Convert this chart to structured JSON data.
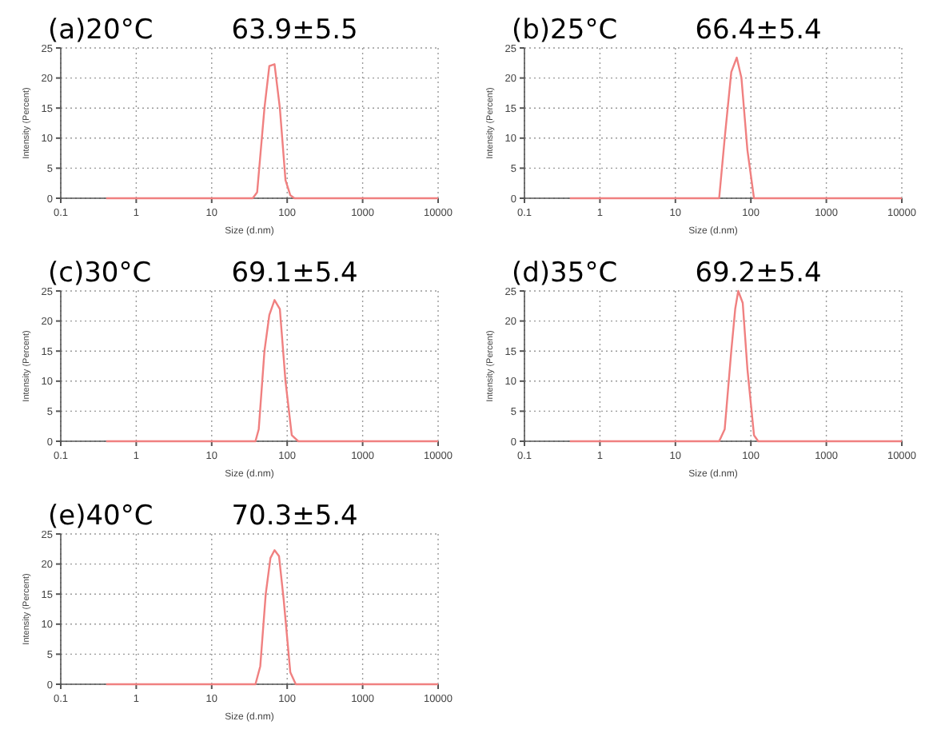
{
  "chart_data": [
    {
      "type": "line",
      "title": "(a)20°C",
      "subtitle": "63.9±5.5",
      "xlabel": "Size (d.nm)",
      "ylabel": "Intensity (Percent)",
      "log": "x",
      "grid": true,
      "xlim": [
        0.1,
        10000
      ],
      "ylim": [
        0,
        25
      ],
      "xticks": [
        0.1,
        1,
        10,
        100,
        1000,
        10000
      ],
      "yticks": [
        0,
        5,
        10,
        15,
        20,
        25
      ],
      "x": [
        0.4,
        35,
        40,
        50,
        58,
        68,
        80,
        95,
        110,
        125,
        10000
      ],
      "series": [
        {
          "color": "#f08080",
          "values": [
            0,
            0,
            1,
            15,
            22,
            22.3,
            15,
            3,
            0.5,
            0,
            0
          ]
        }
      ]
    },
    {
      "type": "line",
      "title": "(b)25°C",
      "subtitle": "66.4±5.4",
      "xlabel": "Size (d.nm)",
      "ylabel": "Intensity (Percent)",
      "log": "x",
      "grid": true,
      "xlim": [
        0.1,
        10000
      ],
      "ylim": [
        0,
        25
      ],
      "xticks": [
        0.1,
        1,
        10,
        100,
        1000,
        10000
      ],
      "yticks": [
        0,
        5,
        10,
        15,
        20,
        25
      ],
      "x": [
        0.4,
        38,
        45,
        55,
        65,
        75,
        90,
        110,
        10000
      ],
      "series": [
        {
          "color": "#f08080",
          "values": [
            0,
            0,
            10,
            21,
            23.4,
            20,
            8,
            0,
            0
          ]
        }
      ]
    },
    {
      "type": "line",
      "title": "(c)30°C",
      "subtitle": "69.1±5.4",
      "xlabel": "Size (d.nm)",
      "ylabel": "Intensity (Percent)",
      "log": "x",
      "grid": true,
      "xlim": [
        0.1,
        10000
      ],
      "ylim": [
        0,
        25
      ],
      "xticks": [
        0.1,
        1,
        10,
        100,
        1000,
        10000
      ],
      "yticks": [
        0,
        5,
        10,
        15,
        20,
        25
      ],
      "x": [
        0.4,
        38,
        42,
        50,
        58,
        68,
        80,
        95,
        115,
        140,
        10000
      ],
      "series": [
        {
          "color": "#f08080",
          "values": [
            0,
            0,
            2,
            15,
            21,
            23.5,
            22,
            10,
            1,
            0,
            0
          ]
        }
      ]
    },
    {
      "type": "line",
      "title": "(d)35°C",
      "subtitle": "69.2±5.4",
      "xlabel": "Size (d.nm)",
      "ylabel": "Intensity (Percent)",
      "log": "x",
      "grid": true,
      "xlim": [
        0.1,
        10000
      ],
      "ylim": [
        0,
        25
      ],
      "xticks": [
        0.1,
        1,
        10,
        100,
        1000,
        10000
      ],
      "yticks": [
        0,
        5,
        10,
        15,
        20,
        25
      ],
      "x": [
        0.4,
        38,
        45,
        55,
        62,
        68,
        78,
        90,
        110,
        125,
        10000
      ],
      "series": [
        {
          "color": "#f08080",
          "values": [
            0,
            0,
            2,
            15,
            22,
            25,
            23,
            12,
            1,
            0,
            0
          ]
        }
      ]
    },
    {
      "type": "line",
      "title": "(e)40°C",
      "subtitle": "70.3±5.4",
      "xlabel": "Size (d.nm)",
      "ylabel": "Intensity (Percent)",
      "log": "x",
      "grid": true,
      "xlim": [
        0.1,
        10000
      ],
      "ylim": [
        0,
        25
      ],
      "xticks": [
        0.1,
        1,
        10,
        100,
        1000,
        10000
      ],
      "yticks": [
        0,
        5,
        10,
        15,
        20,
        25
      ],
      "x": [
        0.4,
        38,
        44,
        52,
        60,
        68,
        78,
        90,
        110,
        130,
        10000
      ],
      "series": [
        {
          "color": "#f08080",
          "values": [
            0,
            0,
            3,
            15,
            21,
            22.3,
            21.3,
            14,
            2,
            0,
            0
          ]
        }
      ]
    }
  ]
}
